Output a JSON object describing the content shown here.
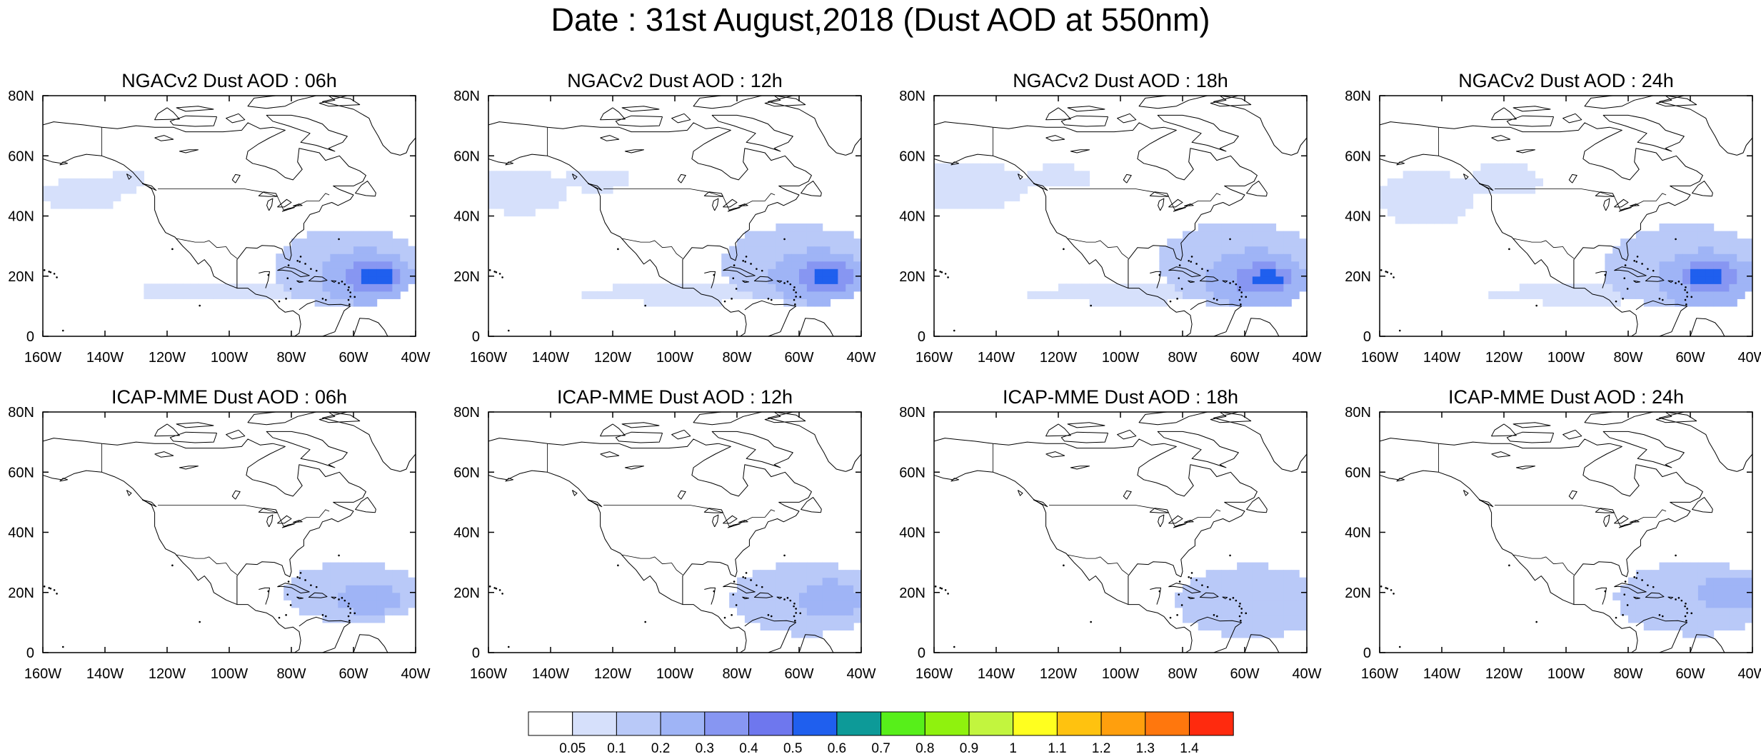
{
  "title": "Date : 31st August,2018 (Dust AOD at 550nm)",
  "axes": {
    "lon_ticks": [
      "160W",
      "140W",
      "120W",
      "100W",
      "80W",
      "60W",
      "40W"
    ],
    "lat_ticks": [
      "0",
      "20N",
      "40N",
      "60N",
      "80N"
    ],
    "lon_range": [
      -160,
      -40
    ],
    "lat_range": [
      0,
      80
    ]
  },
  "panels": [
    {
      "title": "NGACv2 Dust AOD : 06h"
    },
    {
      "title": "NGACv2 Dust AOD : 12h"
    },
    {
      "title": "NGACv2 Dust AOD : 18h"
    },
    {
      "title": "NGACv2 Dust AOD : 24h"
    },
    {
      "title": "ICAP-MME Dust AOD : 06h"
    },
    {
      "title": "ICAP-MME Dust AOD : 12h"
    },
    {
      "title": "ICAP-MME Dust AOD : 18h"
    },
    {
      "title": "ICAP-MME Dust AOD : 24h"
    }
  ],
  "colorbar": {
    "labels": [
      "0.05",
      "0.1",
      "0.2",
      "0.3",
      "0.4",
      "0.5",
      "0.6",
      "0.7",
      "0.8",
      "0.9",
      "1",
      "1.1",
      "1.2",
      "1.3",
      "1.4"
    ],
    "colors": [
      "#ffffff",
      "#d6e0fb",
      "#b9c9f8",
      "#9fb4f6",
      "#8796f2",
      "#6e77ee",
      "#1f5fee",
      "#0d9a98",
      "#57ef1a",
      "#8ff20e",
      "#c2f53e",
      "#ffff1f",
      "#ffc20f",
      "#ff9f0d",
      "#ff770d",
      "#ff2a0e"
    ]
  },
  "chart_data": {
    "type": "heatmap",
    "variable": "Dust AOD at 550nm",
    "units": "AOD",
    "panels": [
      {
        "model": "NGACv2",
        "hour": "06h",
        "blobs": [
          {
            "lon": -53,
            "lat": 20,
            "rlon": 5,
            "rlat": 2.5,
            "aod": 0.5
          },
          {
            "lon": -54,
            "lat": 20,
            "rlon": 9,
            "rlat": 5,
            "aod": 0.35
          },
          {
            "lon": -56,
            "lat": 20,
            "rlon": 15,
            "rlat": 9,
            "aod": 0.25
          },
          {
            "lon": -62,
            "lat": 23,
            "rlon": 24,
            "rlat": 13,
            "aod": 0.15
          },
          {
            "lon": -100,
            "lat": 15,
            "rlon": 30,
            "rlat": 3,
            "aod": 0.07
          },
          {
            "lon": -148,
            "lat": 47,
            "rlon": 14,
            "rlat": 5,
            "aod": 0.07
          },
          {
            "lon": -133,
            "lat": 52,
            "rlon": 6,
            "rlat": 4,
            "aod": 0.06
          }
        ]
      },
      {
        "model": "NGACv2",
        "hour": "12h",
        "blobs": [
          {
            "lon": -51,
            "lat": 20,
            "rlon": 5,
            "rlat": 2.5,
            "aod": 0.5
          },
          {
            "lon": -52,
            "lat": 20,
            "rlon": 9,
            "rlat": 5,
            "aod": 0.35
          },
          {
            "lon": -54,
            "lat": 20,
            "rlon": 15,
            "rlat": 9,
            "aod": 0.25
          },
          {
            "lon": -60,
            "lat": 24,
            "rlon": 25,
            "rlat": 13,
            "aod": 0.15
          },
          {
            "lon": -98,
            "lat": 14,
            "rlon": 32,
            "rlat": 3,
            "aod": 0.07
          },
          {
            "lon": -150,
            "lat": 48,
            "rlon": 16,
            "rlat": 7,
            "aod": 0.07
          },
          {
            "lon": -125,
            "lat": 52,
            "rlon": 10,
            "rlat": 4,
            "aod": 0.06
          }
        ]
      },
      {
        "model": "NGACv2",
        "hour": "18h",
        "blobs": [
          {
            "lon": -53,
            "lat": 19,
            "rlon": 5,
            "rlat": 2.5,
            "aod": 0.5
          },
          {
            "lon": -54,
            "lat": 19,
            "rlon": 9,
            "rlat": 5,
            "aod": 0.35
          },
          {
            "lon": -56,
            "lat": 19,
            "rlon": 16,
            "rlat": 10,
            "aod": 0.25
          },
          {
            "lon": -62,
            "lat": 24,
            "rlon": 26,
            "rlat": 14,
            "aod": 0.15
          },
          {
            "lon": -98,
            "lat": 14,
            "rlon": 32,
            "rlat": 3,
            "aod": 0.07
          },
          {
            "lon": -148,
            "lat": 50,
            "rlon": 18,
            "rlat": 8,
            "aod": 0.07
          },
          {
            "lon": -120,
            "lat": 53,
            "rlon": 10,
            "rlat": 4,
            "aod": 0.06
          }
        ]
      },
      {
        "model": "NGACv2",
        "hour": "24h",
        "blobs": [
          {
            "lon": -55,
            "lat": 20,
            "rlon": 5,
            "rlat": 2.5,
            "aod": 0.5
          },
          {
            "lon": -54,
            "lat": 20,
            "rlon": 9,
            "rlat": 5,
            "aod": 0.35
          },
          {
            "lon": -55,
            "lat": 19,
            "rlon": 16,
            "rlat": 10,
            "aod": 0.25
          },
          {
            "lon": -62,
            "lat": 23,
            "rlon": 26,
            "rlat": 14,
            "aod": 0.15
          },
          {
            "lon": -95,
            "lat": 14,
            "rlon": 30,
            "rlat": 3,
            "aod": 0.07
          },
          {
            "lon": -145,
            "lat": 46,
            "rlon": 16,
            "rlat": 9,
            "aod": 0.07
          },
          {
            "lon": -120,
            "lat": 52,
            "rlon": 12,
            "rlat": 5,
            "aod": 0.06
          }
        ]
      },
      {
        "model": "ICAP-MME",
        "hour": "06h",
        "blobs": [
          {
            "lon": -60,
            "lat": 20,
            "rlon": 22,
            "rlat": 10,
            "aod": 0.12
          },
          {
            "lon": -55,
            "lat": 18,
            "rlon": 10,
            "rlat": 5,
            "aod": 0.22
          }
        ]
      },
      {
        "model": "ICAP-MME",
        "hour": "12h",
        "blobs": [
          {
            "lon": -58,
            "lat": 18,
            "rlon": 24,
            "rlat": 12,
            "aod": 0.12
          },
          {
            "lon": -50,
            "lat": 18,
            "rlon": 10,
            "rlat": 6,
            "aod": 0.2
          }
        ]
      },
      {
        "model": "ICAP-MME",
        "hour": "18h",
        "blobs": [
          {
            "lon": -58,
            "lat": 17,
            "rlon": 24,
            "rlat": 12,
            "aod": 0.12
          },
          {
            "lon": -48,
            "lat": 18,
            "rlon": 10,
            "rlat": 6,
            "aod": 0.18
          }
        ]
      },
      {
        "model": "ICAP-MME",
        "hour": "24h",
        "blobs": [
          {
            "lon": -58,
            "lat": 18,
            "rlon": 26,
            "rlat": 12,
            "aod": 0.12
          },
          {
            "lon": -48,
            "lat": 20,
            "rlon": 10,
            "rlat": 6,
            "aod": 0.2
          }
        ]
      }
    ]
  }
}
